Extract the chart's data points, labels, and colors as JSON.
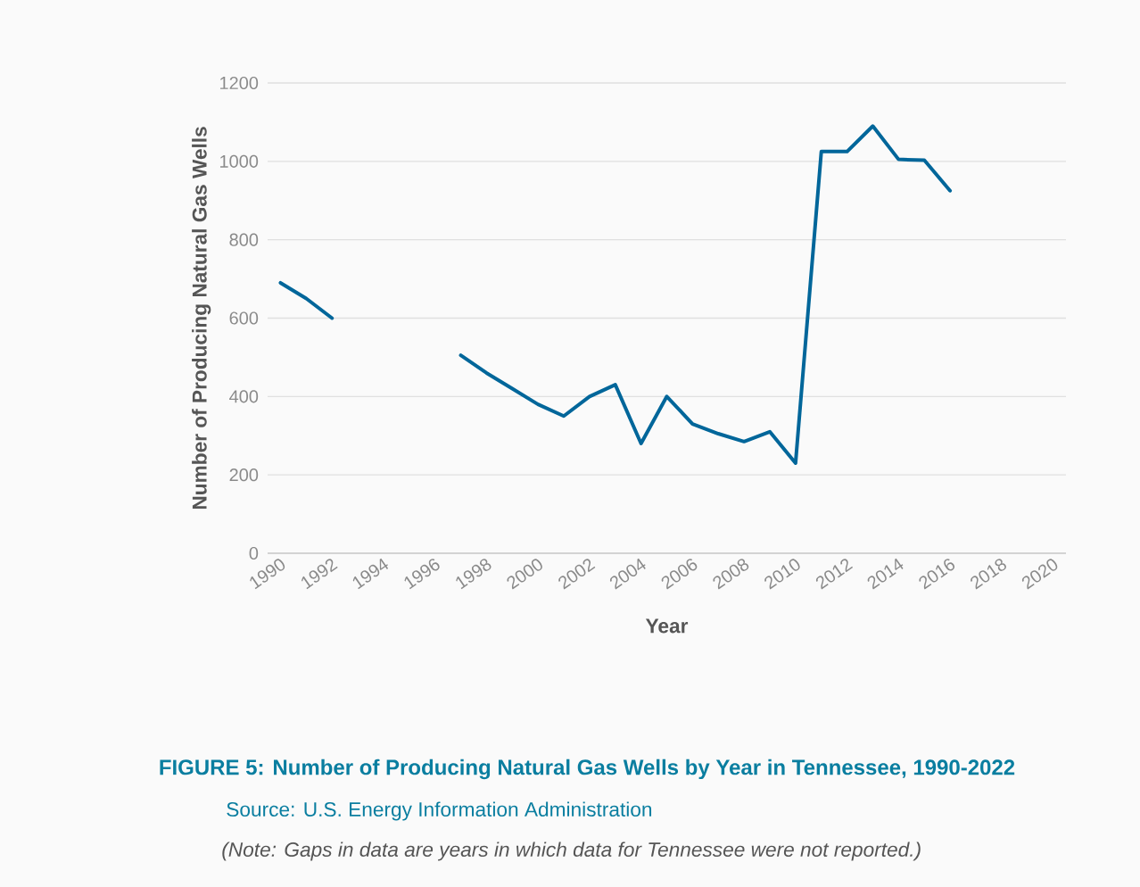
{
  "chart_data": {
    "type": "line",
    "title": "FIGURE 5:  Number of Producing Natural Gas Wells by Year in Tennessee, 1990-2022",
    "xlabel": "Year",
    "ylabel": "Number of Producing Natural Gas Wells",
    "annotations": [
      "Source: U.S. Energy Information Administration",
      "(Note: Gaps in data are years in which data for Tennessee were not reported.)"
    ],
    "x": [
      1990,
      1991,
      1992,
      1993,
      1994,
      1995,
      1996,
      1997,
      1998,
      1999,
      2000,
      2001,
      2002,
      2003,
      2004,
      2005,
      2006,
      2007,
      2008,
      2009,
      2010,
      2011,
      2012,
      2013,
      2014,
      2015,
      2016
    ],
    "series": [
      {
        "color": "#00669a",
        "values": [
          690,
          650,
          600,
          null,
          null,
          null,
          null,
          505,
          460,
          420,
          380,
          350,
          400,
          430,
          280,
          400,
          330,
          305,
          285,
          310,
          230,
          1025,
          1025,
          1090,
          1005,
          1003,
          925
        ]
      }
    ],
    "xlim": [
      1989.5,
      2020.5
    ],
    "ylim": [
      0,
      1200
    ],
    "xticks": [
      1990,
      1992,
      1994,
      1996,
      1998,
      2000,
      2002,
      2004,
      2006,
      2008,
      2010,
      2012,
      2014,
      2016,
      2018,
      2020
    ],
    "yticks": [
      0,
      200,
      400,
      600,
      800,
      1000,
      1200
    ],
    "grid": "y"
  }
}
